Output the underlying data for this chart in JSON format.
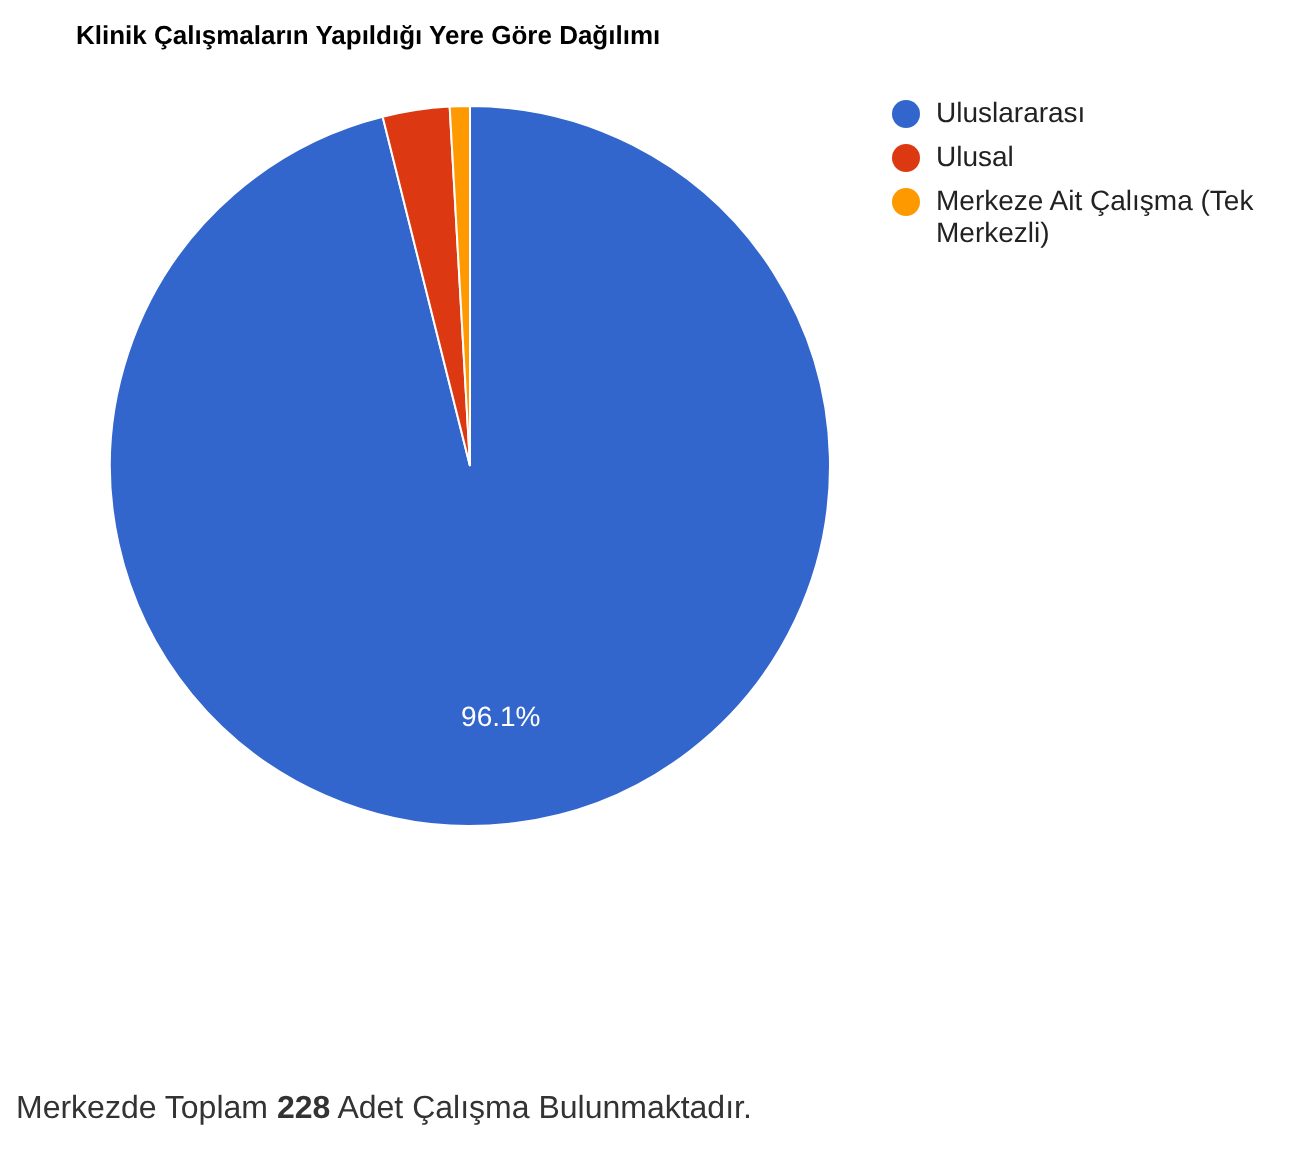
{
  "chart_data": {
    "type": "pie",
    "title": "Klinik Çalışmaların Yapıldığı Yere Göre Dağılımı",
    "categories": [
      "Uluslararası",
      "Ulusal",
      "Merkeze Ait Çalışma (Tek Merkezli)"
    ],
    "values": [
      96.1,
      3.0,
      0.9
    ],
    "colors": [
      "#3366cc",
      "#dc3912",
      "#ff9900"
    ],
    "value_labels": [
      "96.1%",
      null,
      null
    ],
    "legend": "top right",
    "annotations": [
      "Merkezde Toplam 228 Adet Çalışma Bulunmaktadır."
    ]
  }
}
